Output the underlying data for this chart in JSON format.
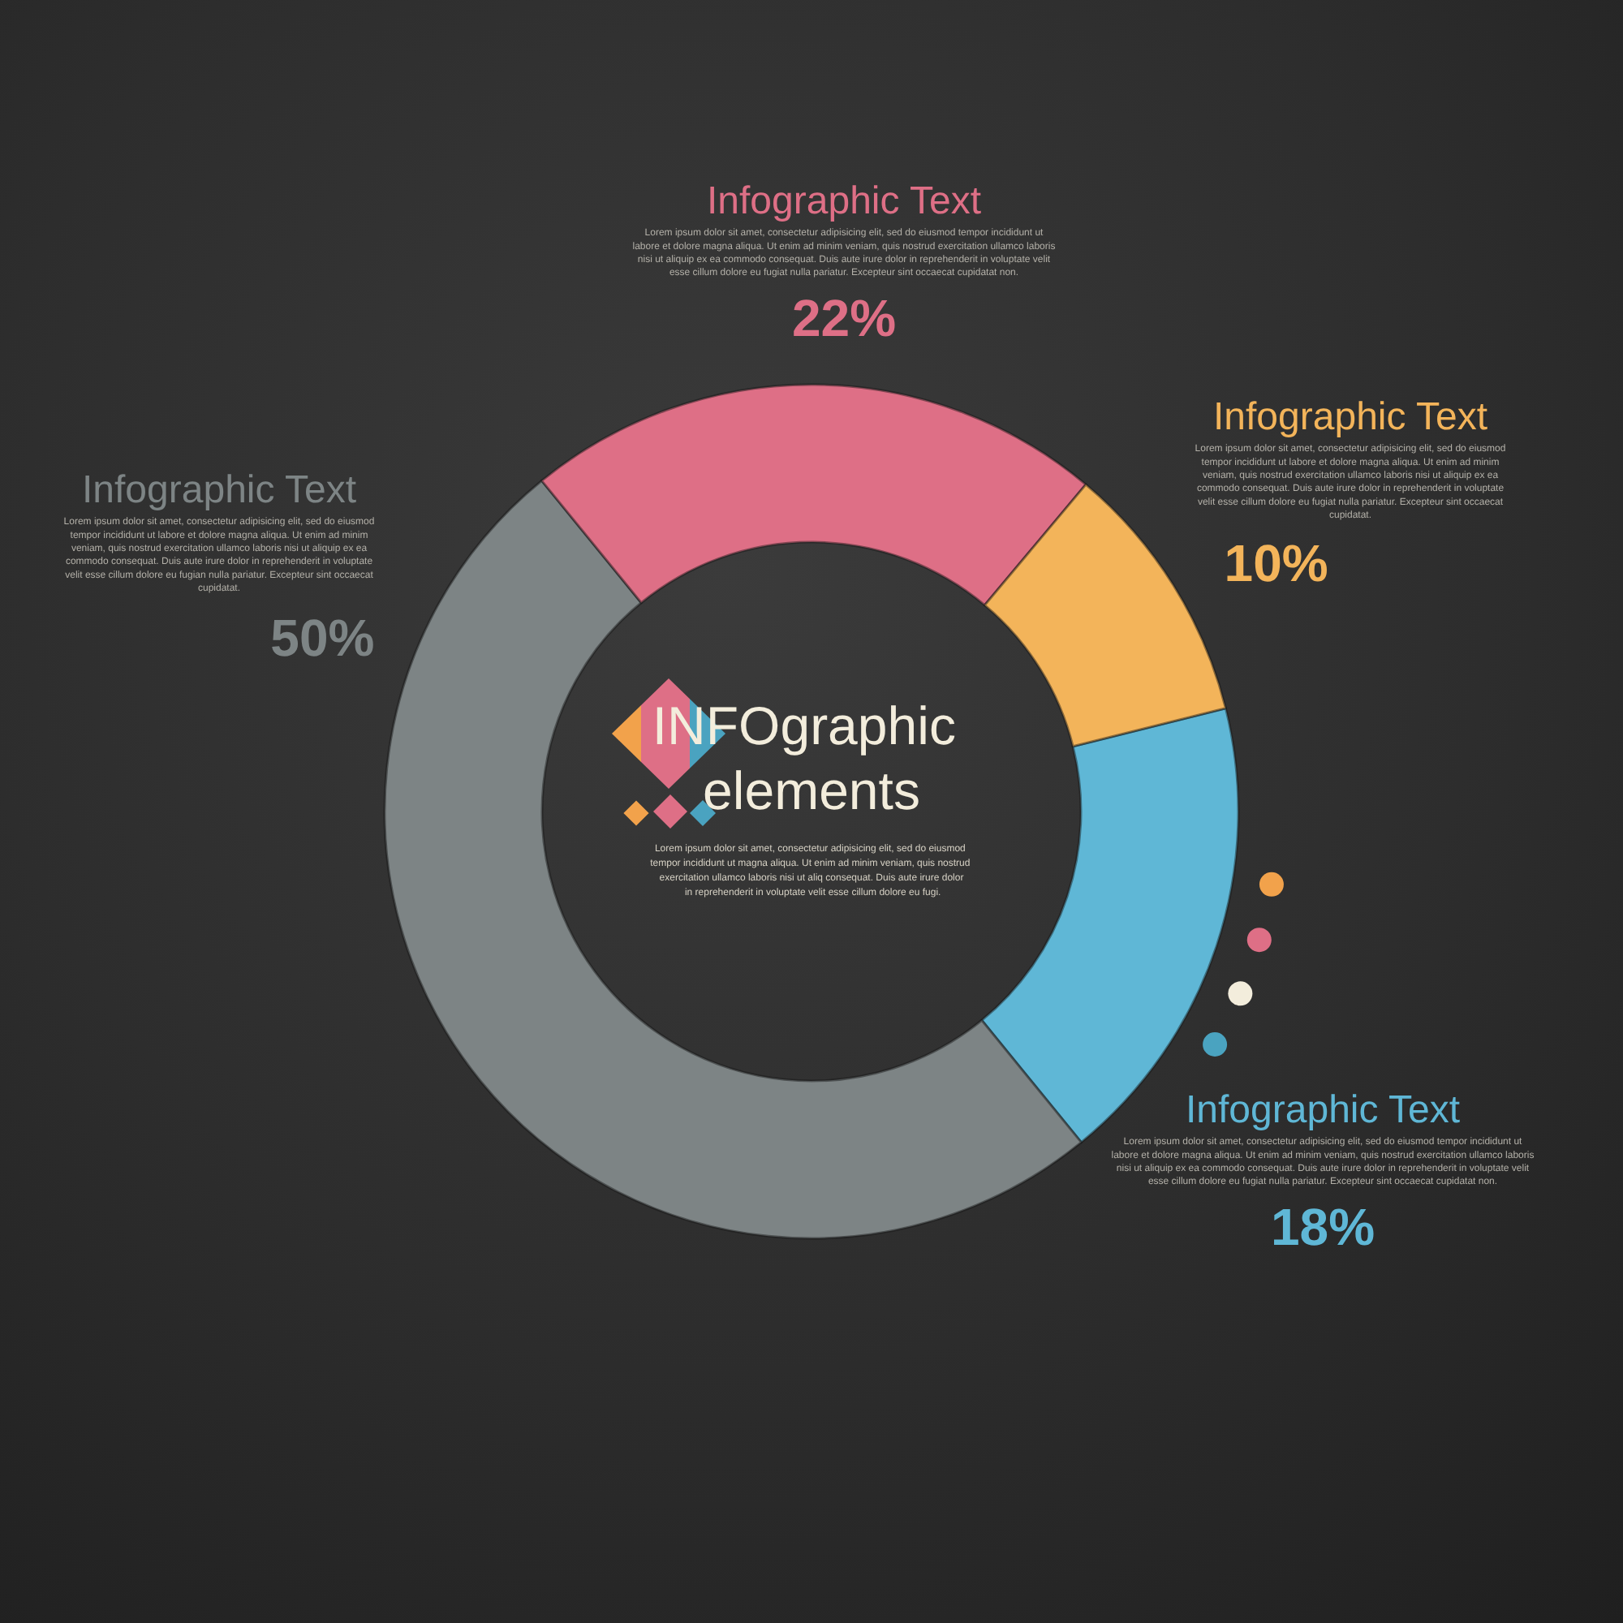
{
  "chart_data": {
    "type": "donut",
    "title": "INFOgraphic elements",
    "subtitle": "Lorem ipsum dolor sit amet, consectetur adipisicing elit, sed do eiusmod tempor incididunt ut magna aliqua. Ut enim ad minim veniam, quis nostrud exercitation ullamco laboris nisi ut aliq consequat. Duis aute irure dolor in reprehenderit in voluptate velit esse cillum dolore eu fugi.",
    "categories": [
      "Infographic Text",
      "Infographic Text",
      "Infographic Text",
      "Infographic Text"
    ],
    "values": [
      18,
      50,
      22,
      10
    ],
    "colors": [
      "#5fb7d6",
      "#7d8485",
      "#de6f86",
      "#f3b45a"
    ],
    "value_labels": [
      "18%",
      "50%",
      "22%",
      "10%"
    ],
    "annotations": [
      "Lorem ipsum dolor sit amet, consectetur adipisicing elit, sed do eiusmod tempor incididunt ut labore et dolore magna aliqua. Ut enim ad minim veniam, quis nostrud exercitation ullamco laboris nisi ut aliquip ex ea commodo consequat. Duis aute irure dolor in reprehenderit in voluptate velit esse cillum dolore eu fugiat nulla pariatur. Excepteur sint occaecat cupidatat non.",
      "Lorem ipsum dolor sit amet, consectetur adipisicing elit, sed do eiusmod tempor incididunt ut labore et dolore magna aliqua. Ut enim ad minim veniam, quis nostrud exercitation ullamco laboris nisi ut aliquip ex ea commodo consequat. Duis aute irure dolor in reprehenderit in voluptate velit esse cillum dolore eu fugian nulla pariatur. Excepteur sint occaecat cupidatat.",
      "Lorem ipsum dolor sit amet, consectetur adipisicing elit, sed do eiusmod tempor incididunt ut labore et dolore magna aliqua. Ut enim ad minim veniam, quis nostrud exercitation ullamco laboris nisi ut aliquip ex ea commodo consequat. Duis aute irure dolor in reprehenderit in voluptate velit esse cillum dolore eu fugiat nulla pariatur. Excepteur sint occaecat cupidatat non.",
      "Lorem ipsum dolor sit amet, consectetur adipisicing elit, sed do eiusmod tempor incididunt ut labore et dolore magna aliqua. Ut enim ad minim veniam, quis nostrud exercitation ullamco laboris nisi ut aliquip ex ea commodo consequat. Duis aute irure dolor in reprehenderit in voluptate velit esse cillum dolore eu fugiat nulla pariatur. Excepteur sint occaecat cupidatat."
    ]
  }
}
